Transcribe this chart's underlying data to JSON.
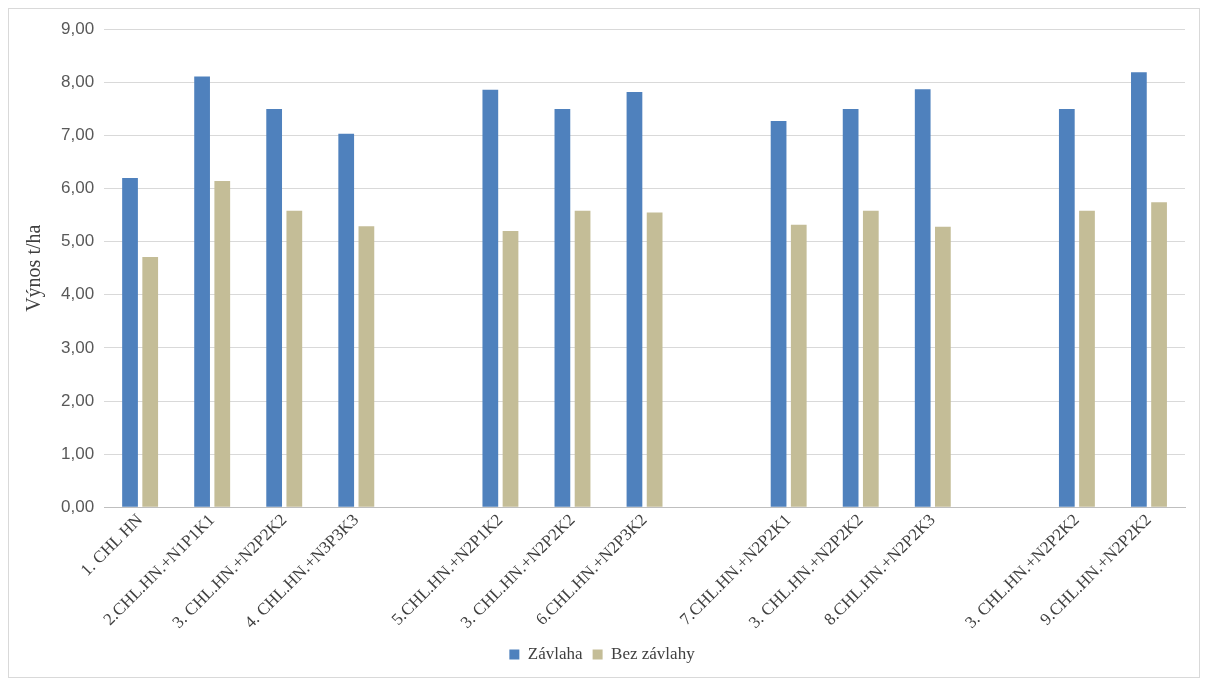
{
  "chart_data": {
    "type": "bar",
    "ylabel": "Výnos t/ha",
    "categories": [
      "1. CHL HN",
      "2.CHL.HN.+N1P1K1",
      "3. CHL.HN.+N2P2K2",
      "4. CHL.HN.+N3P3K3",
      null,
      "5.CHL.HN.+N2P1K2",
      "3. CHL.HN.+N2P2K2",
      "6.CHL.HN.+N2P3K2",
      null,
      "7.CHL.HN.+N2P2K1",
      "3. CHL.HN.+N2P2K2",
      "8.CHL.HN.+N2P2K3",
      null,
      "3. CHL.HN.+N2P2K2",
      "9.CHL.HN.+N2P2K2"
    ],
    "series": [
      {
        "name": "Závlaha",
        "color": "#4f81bd",
        "values": [
          6.2,
          8.11,
          7.5,
          7.03,
          null,
          7.86,
          7.5,
          7.82,
          null,
          7.27,
          7.5,
          7.87,
          null,
          7.5,
          8.19
        ]
      },
      {
        "name": "Bez závlahy",
        "color": "#c4bd97",
        "values": [
          4.71,
          6.14,
          5.58,
          5.29,
          null,
          5.2,
          5.58,
          5.55,
          null,
          5.32,
          5.58,
          5.28,
          null,
          5.58,
          5.74
        ]
      }
    ],
    "ylim": [
      0,
      9
    ],
    "yticks": [
      {
        "value": 0,
        "label": "0,00"
      },
      {
        "value": 1,
        "label": "1,00"
      },
      {
        "value": 2,
        "label": "2,00"
      },
      {
        "value": 3,
        "label": "3,00"
      },
      {
        "value": 4,
        "label": "4,00"
      },
      {
        "value": 5,
        "label": "5,00"
      },
      {
        "value": 6,
        "label": "6,00"
      },
      {
        "value": 7,
        "label": "7,00"
      },
      {
        "value": 8,
        "label": "8,00"
      },
      {
        "value": 9,
        "label": "9,00"
      }
    ],
    "grid": "y",
    "legend": "bottom"
  }
}
